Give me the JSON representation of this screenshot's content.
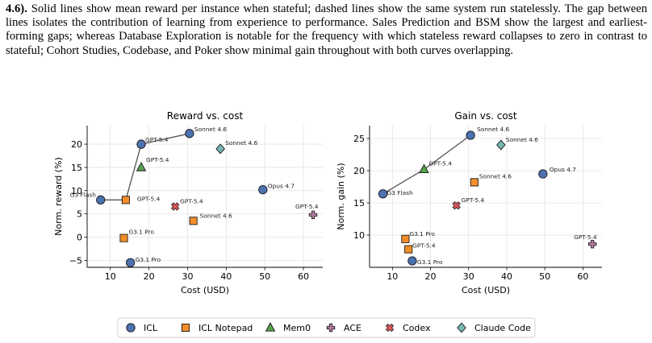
{
  "caption": {
    "lead": "4.6).",
    "lines": [
      "Solid lines show mean reward per instance when stateful; dashed lines show the same system run",
      "statelessly. The gap between lines isolates the contribution of learning from experience to performance.",
      "Sales Prediction and BSM show the largest and earliest-forming gaps; whereas Database Exploration",
      "is notable for the frequency with which stateless reward collapses to zero in contrast to stateful;",
      "Cohort Studies, Codebase, and Poker show minimal gain throughout with both curves overlapping."
    ]
  },
  "legend": [
    {
      "name": "ICL",
      "marker": "circle",
      "color": "#4c72b0"
    },
    {
      "name": "ICL Notepad",
      "marker": "square",
      "color": "#f28e2b"
    },
    {
      "name": "Mem0",
      "marker": "triangle",
      "color": "#59a14f"
    },
    {
      "name": "ACE",
      "marker": "plus",
      "color": "#b07aa1"
    },
    {
      "name": "Codex",
      "marker": "x",
      "color": "#e15759"
    },
    {
      "name": "Claude Code",
      "marker": "diamond",
      "color": "#76b7b2"
    }
  ],
  "chart_data": [
    {
      "type": "scatter",
      "title": "Reward vs. cost",
      "xlabel": "Cost (USD)",
      "ylabel": "Norm. reward (%)",
      "xlim": [
        4,
        65
      ],
      "ylim": [
        -6.5,
        24
      ],
      "xticks": [
        10,
        20,
        30,
        40,
        50,
        60
      ],
      "yticks": [
        -5,
        0,
        5,
        10,
        15,
        20
      ],
      "grid": true,
      "frontier": [
        [
          7.5,
          8.0
        ],
        [
          14.0,
          8.0
        ],
        [
          18.0,
          20.0
        ],
        [
          30.5,
          22.3
        ]
      ],
      "points": [
        {
          "series": "ICL",
          "label": "G3 Flash",
          "x": 7.5,
          "y": 8.0
        },
        {
          "series": "ICL",
          "label": "GPT-5.4",
          "x": 18.0,
          "y": 20.0
        },
        {
          "series": "ICL",
          "label": "Sonnet 4.6",
          "x": 30.5,
          "y": 22.3
        },
        {
          "series": "ICL",
          "label": "Opus 4.7",
          "x": 49.5,
          "y": 10.2
        },
        {
          "series": "ICL",
          "label": "G3.1 Pro",
          "x": 15.2,
          "y": -5.5
        },
        {
          "series": "ICL Notepad",
          "label": "GPT-5.4",
          "x": 14.0,
          "y": 8.0
        },
        {
          "series": "ICL Notepad",
          "label": "G3.1 Pro",
          "x": 13.5,
          "y": -0.2
        },
        {
          "series": "ICL Notepad",
          "label": "Sonnet 4.6",
          "x": 31.5,
          "y": 3.5
        },
        {
          "series": "Mem0",
          "label": "GPT-5.4",
          "x": 18.0,
          "y": 15.0
        },
        {
          "series": "ACE",
          "label": "GPT-5.4",
          "x": 62.5,
          "y": 4.8
        },
        {
          "series": "Codex",
          "label": "GPT-5.4",
          "x": 26.8,
          "y": 6.6
        },
        {
          "series": "Claude Code",
          "label": "Sonnet 4.6",
          "x": 38.5,
          "y": 19.0
        }
      ]
    },
    {
      "type": "scatter",
      "title": "Gain vs. cost",
      "xlabel": "Cost (USD)",
      "ylabel": "Norm. gain (%)",
      "xlim": [
        4,
        65
      ],
      "ylim": [
        5.0,
        27.0
      ],
      "xticks": [
        10,
        20,
        30,
        40,
        50,
        60
      ],
      "yticks": [
        10,
        15,
        20,
        25
      ],
      "grid": true,
      "frontier": [
        [
          7.5,
          16.4
        ],
        [
          18.3,
          20.2
        ],
        [
          30.5,
          25.5
        ]
      ],
      "points": [
        {
          "series": "ICL",
          "label": "G3 Flash",
          "x": 7.5,
          "y": 16.4
        },
        {
          "series": "ICL",
          "label": "Sonnet 4.6",
          "x": 30.5,
          "y": 25.5
        },
        {
          "series": "ICL",
          "label": "Opus 4.7",
          "x": 49.5,
          "y": 19.5
        },
        {
          "series": "ICL",
          "label": "G3.1 Pro",
          "x": 15.2,
          "y": 6.0
        },
        {
          "series": "ICL Notepad",
          "label": "G3.1 Pro",
          "x": 13.4,
          "y": 9.4
        },
        {
          "series": "ICL Notepad",
          "label": "GPT-5.4",
          "x": 14.2,
          "y": 7.8
        },
        {
          "series": "ICL Notepad",
          "label": "Sonnet 4.6",
          "x": 31.5,
          "y": 18.2
        },
        {
          "series": "Mem0",
          "label": "GPT-5.4",
          "x": 18.3,
          "y": 20.2
        },
        {
          "series": "ACE",
          "label": "GPT-5.4",
          "x": 62.5,
          "y": 8.6
        },
        {
          "series": "Codex",
          "label": "GPT-5.4",
          "x": 26.8,
          "y": 14.6
        },
        {
          "series": "Claude Code",
          "label": "Sonnet 4.6",
          "x": 38.5,
          "y": 24.0
        }
      ]
    }
  ]
}
